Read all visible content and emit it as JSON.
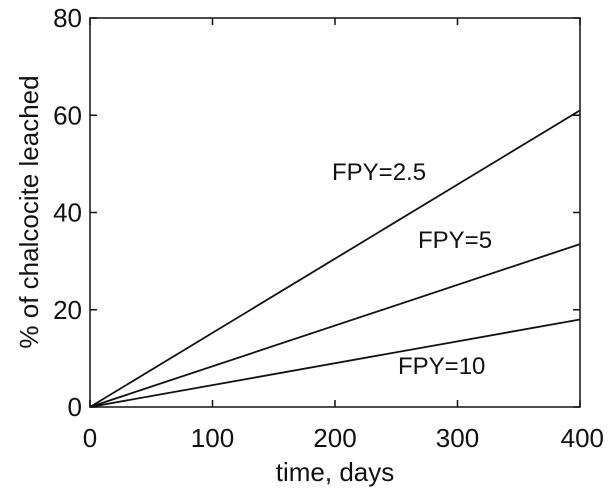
{
  "chart_data": {
    "type": "line",
    "title": "",
    "xlabel": "time, days",
    "ylabel": "% of chalcocite leached",
    "xlim": [
      0,
      400
    ],
    "ylim": [
      0,
      80
    ],
    "xticks": [
      0,
      100,
      200,
      300,
      400
    ],
    "yticks": [
      0,
      20,
      40,
      60,
      80
    ],
    "grid": false,
    "legend": "none",
    "line_color": "#111111",
    "series": [
      {
        "name": "FPY=2.5",
        "x": [
          0,
          400
        ],
        "y": [
          0,
          61
        ]
      },
      {
        "name": "FPY=5",
        "x": [
          0,
          400
        ],
        "y": [
          0,
          33.5
        ]
      },
      {
        "name": "FPY=10",
        "x": [
          0,
          400
        ],
        "y": [
          0,
          18
        ]
      }
    ]
  }
}
